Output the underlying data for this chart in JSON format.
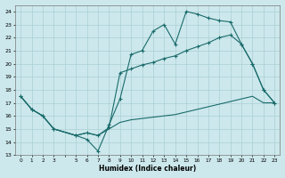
{
  "xlabel": "Humidex (Indice chaleur)",
  "bg_color": "#cce8ec",
  "grid_color": "#aacfd4",
  "line_color": "#1a6b6b",
  "xlim": [
    -0.5,
    23.5
  ],
  "ylim": [
    13,
    24.5
  ],
  "xtick_vals": [
    0,
    1,
    2,
    3,
    4,
    5,
    6,
    7,
    8,
    9,
    10,
    11,
    12,
    13,
    14,
    15,
    16,
    17,
    18,
    19,
    20,
    21,
    22,
    23
  ],
  "xtick_labels": [
    "0",
    "1",
    "2",
    "3",
    "",
    "5",
    "6",
    "7",
    "8",
    "9",
    "10",
    "11",
    "12",
    "13",
    "14",
    "15",
    "16",
    "17",
    "18",
    "19",
    "20",
    "21",
    "22",
    "23"
  ],
  "ytick_vals": [
    13,
    14,
    15,
    16,
    17,
    18,
    19,
    20,
    21,
    22,
    23,
    24
  ],
  "line1_x": [
    0,
    1,
    2,
    3,
    5,
    6,
    7,
    8,
    9,
    10,
    11,
    12,
    13,
    14,
    15,
    16,
    17,
    18,
    19,
    20,
    21,
    22,
    23
  ],
  "line1_y": [
    17.5,
    16.5,
    16.0,
    15.0,
    14.5,
    14.2,
    13.3,
    15.3,
    17.3,
    20.7,
    21.0,
    22.5,
    23.0,
    21.5,
    24.0,
    23.8,
    23.5,
    23.3,
    23.2,
    21.5,
    20.0,
    18.0,
    17.0
  ],
  "line2_x": [
    0,
    1,
    2,
    3,
    5,
    6,
    7,
    8,
    9,
    10,
    11,
    12,
    13,
    14,
    15,
    16,
    17,
    18,
    19,
    20,
    21,
    22,
    23
  ],
  "line2_y": [
    17.5,
    16.5,
    16.0,
    15.0,
    14.5,
    14.7,
    14.5,
    15.1,
    19.3,
    19.6,
    19.9,
    20.1,
    20.4,
    20.6,
    21.0,
    21.3,
    21.6,
    22.0,
    22.2,
    21.5,
    20.0,
    18.0,
    17.0
  ],
  "line3_x": [
    0,
    1,
    2,
    3,
    5,
    6,
    7,
    8,
    9,
    10,
    11,
    12,
    13,
    14,
    15,
    16,
    17,
    18,
    19,
    20,
    21,
    22,
    23
  ],
  "line3_y": [
    17.5,
    16.5,
    16.0,
    15.0,
    14.5,
    14.7,
    14.5,
    15.0,
    15.5,
    15.7,
    15.8,
    15.9,
    16.0,
    16.1,
    16.3,
    16.5,
    16.7,
    16.9,
    17.1,
    17.3,
    17.5,
    17.0,
    17.0
  ]
}
